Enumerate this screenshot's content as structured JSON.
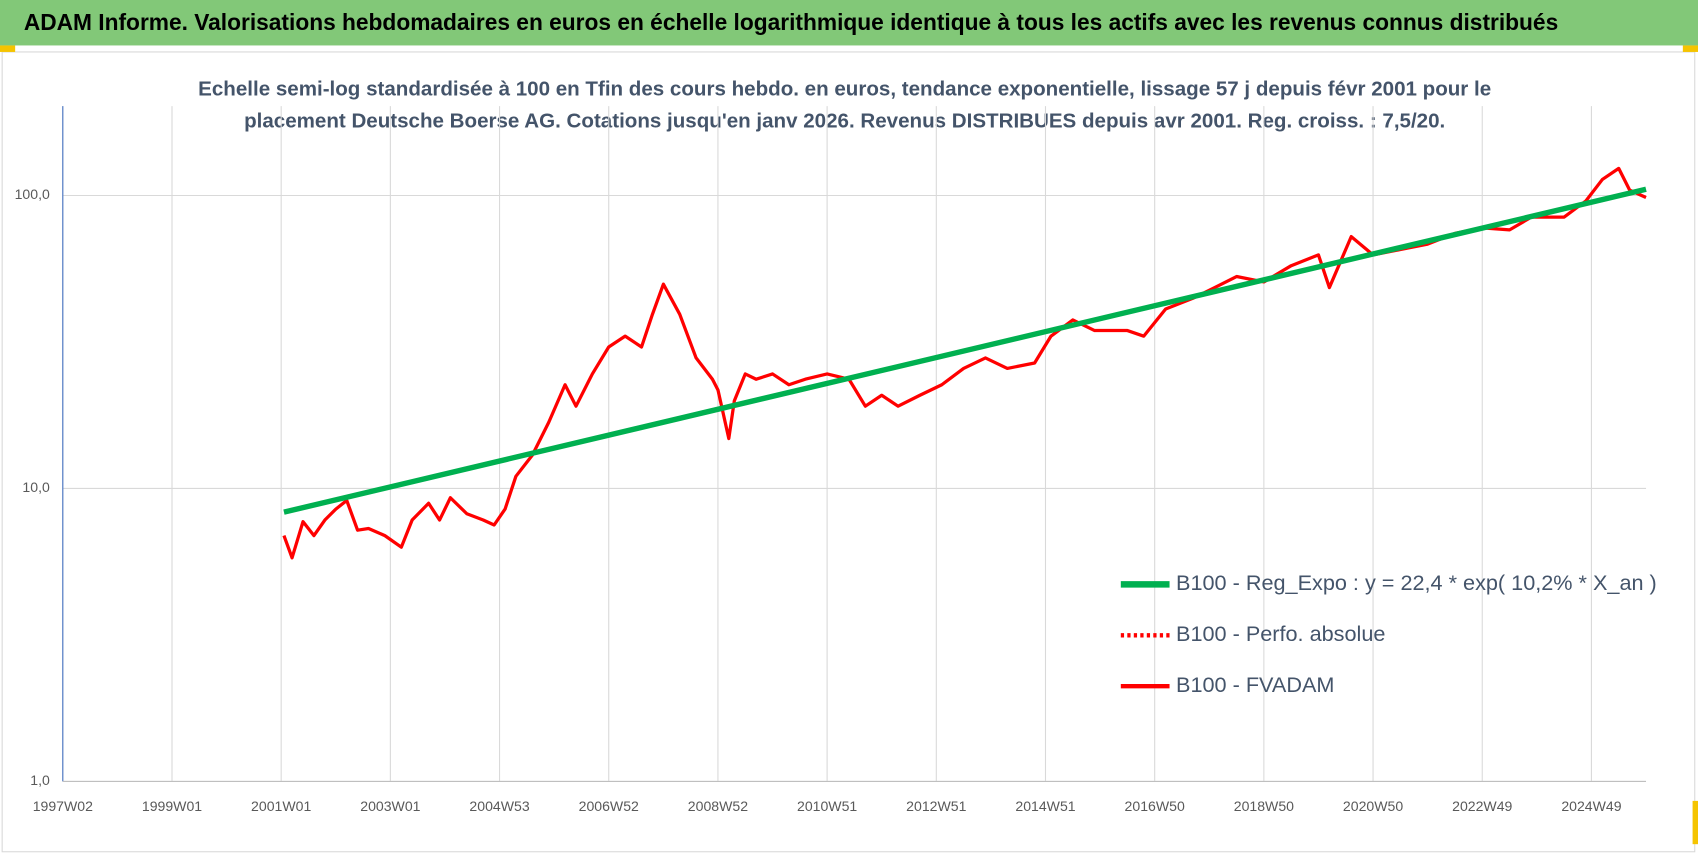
{
  "header": "ADAM Informe. Valorisations hebdomadaires en euros en échelle logarithmique identique à tous les actifs avec les revenus connus distribués",
  "chart_data": {
    "type": "line",
    "title": [
      "Echelle semi-log standardisée à 100 en Tfin des cours hebdo. en euros, tendance exponentielle, lissage 57 j depuis févr 2001 pour le",
      "placement Deutsche Boerse AG. Cotations jusqu'en janv 2026. Revenus DISTRIBUES depuis avr 2001. Reg. croiss. : 7,5/20."
    ],
    "log_y": true,
    "grid": true,
    "legend": "right",
    "xlim": [
      1997,
      2026
    ],
    "xticks": [
      {
        "value": 1997.0,
        "label": "1997W02"
      },
      {
        "value": 1999.0,
        "label": "1999W01"
      },
      {
        "value": 2001.0,
        "label": "2001W01"
      },
      {
        "value": 2003.0,
        "label": "2003W01"
      },
      {
        "value": 2005.0,
        "label": "2004W53"
      },
      {
        "value": 2007.0,
        "label": "2006W52"
      },
      {
        "value": 2009.0,
        "label": "2008W52"
      },
      {
        "value": 2011.0,
        "label": "2010W51"
      },
      {
        "value": 2013.0,
        "label": "2012W51"
      },
      {
        "value": 2015.0,
        "label": "2014W51"
      },
      {
        "value": 2017.0,
        "label": "2016W50"
      },
      {
        "value": 2019.0,
        "label": "2018W50"
      },
      {
        "value": 2021.0,
        "label": "2020W50"
      },
      {
        "value": 2023.0,
        "label": "2022W49"
      },
      {
        "value": 2025.0,
        "label": "2024W49"
      }
    ],
    "ylim": [
      1,
      202
    ],
    "yticks": [
      {
        "value": 1,
        "label": "1,0"
      },
      {
        "value": 10,
        "label": "10,0"
      },
      {
        "value": 100,
        "label": "100,0"
      }
    ],
    "series": [
      {
        "name": "B100 - Reg_Expo : y = 22,4 * exp( 10,2% *  X_an )",
        "color": "#00b050",
        "width": 5,
        "dash": "solid",
        "x": [
          2001.05,
          2026.0
        ],
        "values": [
          8.3,
          105
        ]
      },
      {
        "name": "B100 - Perfo. absolue",
        "color": "#ff0000",
        "width": 3,
        "dash": "dotted"
      },
      {
        "name": "B100 - FVADAM",
        "color": "#ff0000",
        "width": 3,
        "dash": "solid",
        "x": [
          2001.05,
          2001.2,
          2001.4,
          2001.6,
          2001.8,
          2002.0,
          2002.2,
          2002.4,
          2002.6,
          2002.9,
          2003.2,
          2003.4,
          2003.7,
          2003.9,
          2004.1,
          2004.4,
          2004.7,
          2004.9,
          2005.1,
          2005.3,
          2005.6,
          2005.9,
          2006.2,
          2006.4,
          2006.7,
          2007.0,
          2007.3,
          2007.6,
          2007.8,
          2008.0,
          2008.3,
          2008.6,
          2008.9,
          2009.0,
          2009.2,
          2009.3,
          2009.5,
          2009.7,
          2010.0,
          2010.3,
          2010.6,
          2011.0,
          2011.4,
          2011.7,
          2012.0,
          2012.3,
          2012.7,
          2013.1,
          2013.5,
          2013.9,
          2014.3,
          2014.8,
          2015.1,
          2015.5,
          2015.9,
          2016.5,
          2016.8,
          2017.2,
          2017.7,
          2018.1,
          2018.5,
          2019.0,
          2019.5,
          2020.0,
          2020.2,
          2020.6,
          2021.0,
          2021.5,
          2022.0,
          2022.5,
          2023.0,
          2023.5,
          2023.9,
          2024.5,
          2024.9,
          2025.2,
          2025.5,
          2025.7,
          2026.0
        ],
        "values": [
          6.9,
          5.8,
          7.7,
          6.9,
          7.8,
          8.5,
          9.1,
          7.2,
          7.3,
          6.9,
          6.3,
          7.8,
          8.9,
          7.8,
          9.3,
          8.2,
          7.8,
          7.5,
          8.5,
          11.0,
          13.0,
          16.8,
          22.6,
          19.1,
          24.6,
          30.4,
          33.1,
          30.4,
          39.3,
          49.8,
          39.3,
          27.9,
          23.6,
          21.7,
          14.8,
          19.9,
          24.6,
          23.6,
          24.6,
          22.6,
          23.6,
          24.6,
          23.6,
          19.1,
          20.8,
          19.1,
          20.8,
          22.6,
          25.7,
          27.9,
          25.7,
          26.8,
          33.1,
          37.6,
          34.6,
          34.6,
          33.1,
          41.0,
          44.6,
          48.5,
          52.9,
          50.7,
          57.6,
          62.7,
          48.5,
          72.4,
          62.7,
          65.4,
          68.2,
          74.3,
          77.5,
          76.3,
          84.4,
          84.4,
          95.9,
          113.5,
          123.7,
          104.3,
          98.4
        ]
      }
    ]
  }
}
